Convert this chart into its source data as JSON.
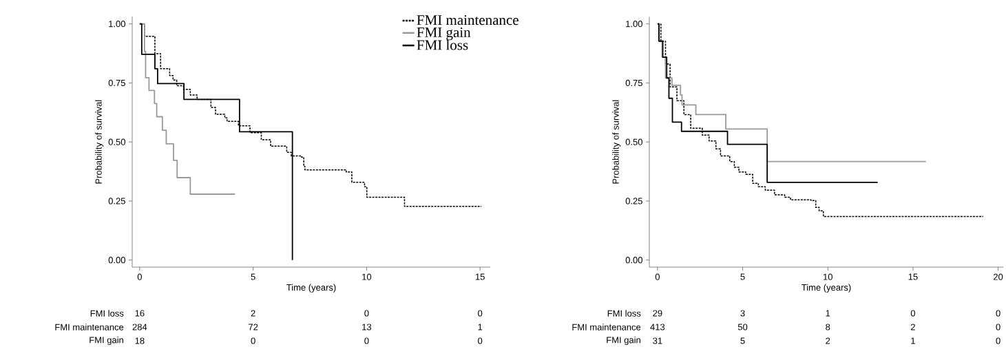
{
  "chart_data": [
    {
      "type": "step",
      "xlabel": "Time (years)",
      "ylabel": "Probability of survival",
      "xlim": [
        -0.33,
        15.45
      ],
      "ylim": [
        -0.03,
        1.03
      ],
      "xticks": [
        0,
        5,
        10,
        15
      ],
      "yticks": [
        {
          "value": 0,
          "label": "0.00"
        },
        {
          "value": 0.25,
          "label": "0.25"
        },
        {
          "value": 0.5,
          "label": "0.50"
        },
        {
          "value": 0.75,
          "label": "0.75"
        },
        {
          "value": 1,
          "label": "1.00"
        }
      ],
      "legend": "top right",
      "series": [
        {
          "name": "FMI maintenance",
          "color": "#000000",
          "line_style": "dashed",
          "x": [
            0,
            0.21,
            0.67,
            0.92,
            1.32,
            1.47,
            1.63,
            1.93,
            2.23,
            2.53,
            3.14,
            3.34,
            3.75,
            3.85,
            4.35,
            4.86,
            5.36,
            5.77,
            6.27,
            6.48,
            6.68,
            7.13,
            7.23,
            7.28,
            9.1,
            9.35,
            9.91,
            10.01,
            11.67,
            15.06
          ],
          "values": [
            1.0,
            0.947,
            0.874,
            0.81,
            0.781,
            0.762,
            0.738,
            0.723,
            0.699,
            0.68,
            0.646,
            0.617,
            0.602,
            0.587,
            0.568,
            0.539,
            0.509,
            0.482,
            0.482,
            0.456,
            0.441,
            0.436,
            0.397,
            0.382,
            0.373,
            0.329,
            0.31,
            0.266,
            0.227,
            0.227
          ]
        },
        {
          "name": "FMI gain",
          "color": "#999999",
          "line_style": "solid",
          "x": [
            0,
            0.21,
            0.26,
            0.41,
            0.65,
            0.75,
            1.0,
            1.17,
            1.49,
            1.65,
            2.23,
            4.2
          ],
          "values": [
            1.0,
            0.883,
            0.772,
            0.718,
            0.663,
            0.607,
            0.55,
            0.492,
            0.422,
            0.349,
            0.279,
            0.279
          ]
        },
        {
          "name": "FMI loss",
          "color": "#000000",
          "line_style": "solid",
          "x": [
            0,
            0.09,
            0.67,
            0.79,
            1.95,
            4.4,
            6.73
          ],
          "values": [
            1.0,
            0.871,
            0.81,
            0.747,
            0.68,
            0.543,
            0.0
          ]
        }
      ],
      "annotations": [
        "FMI loss",
        "16",
        "2",
        "0",
        "0",
        "FMI maintenance",
        "284",
        "72",
        "13",
        "1",
        "FMI gain",
        "18",
        "0",
        "0",
        "0"
      ]
    },
    {
      "type": "step",
      "xlabel": "Time (years)",
      "ylabel": "Probability of survival",
      "xlim": [
        -0.48,
        20.3
      ],
      "ylim": [
        -0.03,
        1.03
      ],
      "xticks": [
        0,
        5,
        10,
        15,
        20
      ],
      "yticks": [
        {
          "value": 0,
          "label": "0.00"
        },
        {
          "value": 0.25,
          "label": "0.25"
        },
        {
          "value": 0.5,
          "label": "0.50"
        },
        {
          "value": 0.75,
          "label": "0.75"
        },
        {
          "value": 1,
          "label": "1.00"
        }
      ],
      "series": [
        {
          "color": "#000000",
          "line_style": "dashed",
          "x": [
            0,
            0.2,
            0.47,
            0.74,
            1.14,
            1.55,
            1.95,
            2.63,
            3.03,
            3.43,
            3.7,
            4.24,
            4.51,
            4.78,
            5.18,
            5.59,
            5.92,
            6.33,
            6.87,
            7.47,
            7.81,
            9.02,
            9.29,
            9.49,
            9.74,
            19.12
          ],
          "values": [
            1.0,
            0.927,
            0.83,
            0.733,
            0.675,
            0.616,
            0.558,
            0.529,
            0.504,
            0.471,
            0.441,
            0.417,
            0.393,
            0.373,
            0.363,
            0.325,
            0.31,
            0.296,
            0.276,
            0.266,
            0.255,
            0.252,
            0.223,
            0.208,
            0.184,
            0.184
          ]
        },
        {
          "color": "#999999",
          "line_style": "solid",
          "x": [
            0,
            0.07,
            0.27,
            0.47,
            0.85,
            1.35,
            1.44,
            2.25,
            4.01,
            6.44,
            15.76
          ],
          "values": [
            1.0,
            0.927,
            0.859,
            0.771,
            0.74,
            0.699,
            0.657,
            0.616,
            0.555,
            0.417,
            0.417
          ]
        },
        {
          "color": "#000000",
          "line_style": "solid",
          "x": [
            0,
            0.09,
            0.31,
            0.54,
            0.67,
            0.875,
            1.41,
            4.11,
            6.44,
            12.93
          ],
          "values": [
            1.0,
            0.927,
            0.859,
            0.771,
            0.685,
            0.584,
            0.545,
            0.49,
            0.329,
            0.329
          ]
        }
      ],
      "annotations": [
        "FMI loss",
        "29",
        "3",
        "1",
        "0",
        "0",
        "FMI maintenance",
        "413",
        "50",
        "8",
        "2",
        "0",
        "FMI gain",
        "31",
        "5",
        "2",
        "1",
        "0"
      ]
    }
  ]
}
